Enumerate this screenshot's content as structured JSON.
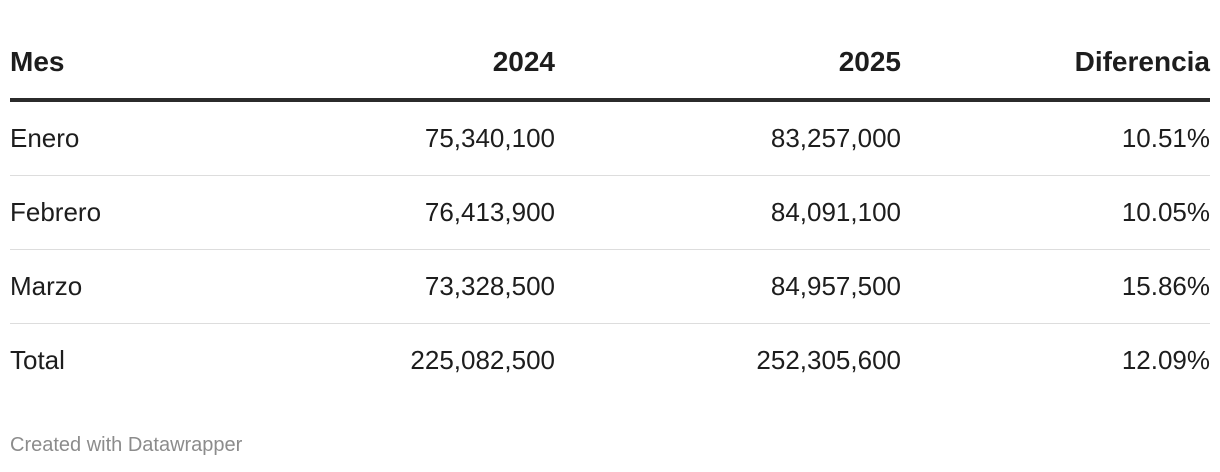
{
  "chart_data": {
    "type": "table",
    "columns": [
      "Mes",
      "2024",
      "2025",
      "Diferencia"
    ],
    "rows": [
      [
        "Enero",
        "75,340,100",
        "83,257,000",
        "10.51%"
      ],
      [
        "Febrero",
        "76,413,900",
        "84,091,100",
        "10.05%"
      ],
      [
        "Marzo",
        "73,328,500",
        "84,957,500",
        "15.86%"
      ],
      [
        "Total",
        "225,082,500",
        "252,305,600",
        "12.09%"
      ]
    ]
  },
  "footer": {
    "credit": "Created with Datawrapper"
  }
}
